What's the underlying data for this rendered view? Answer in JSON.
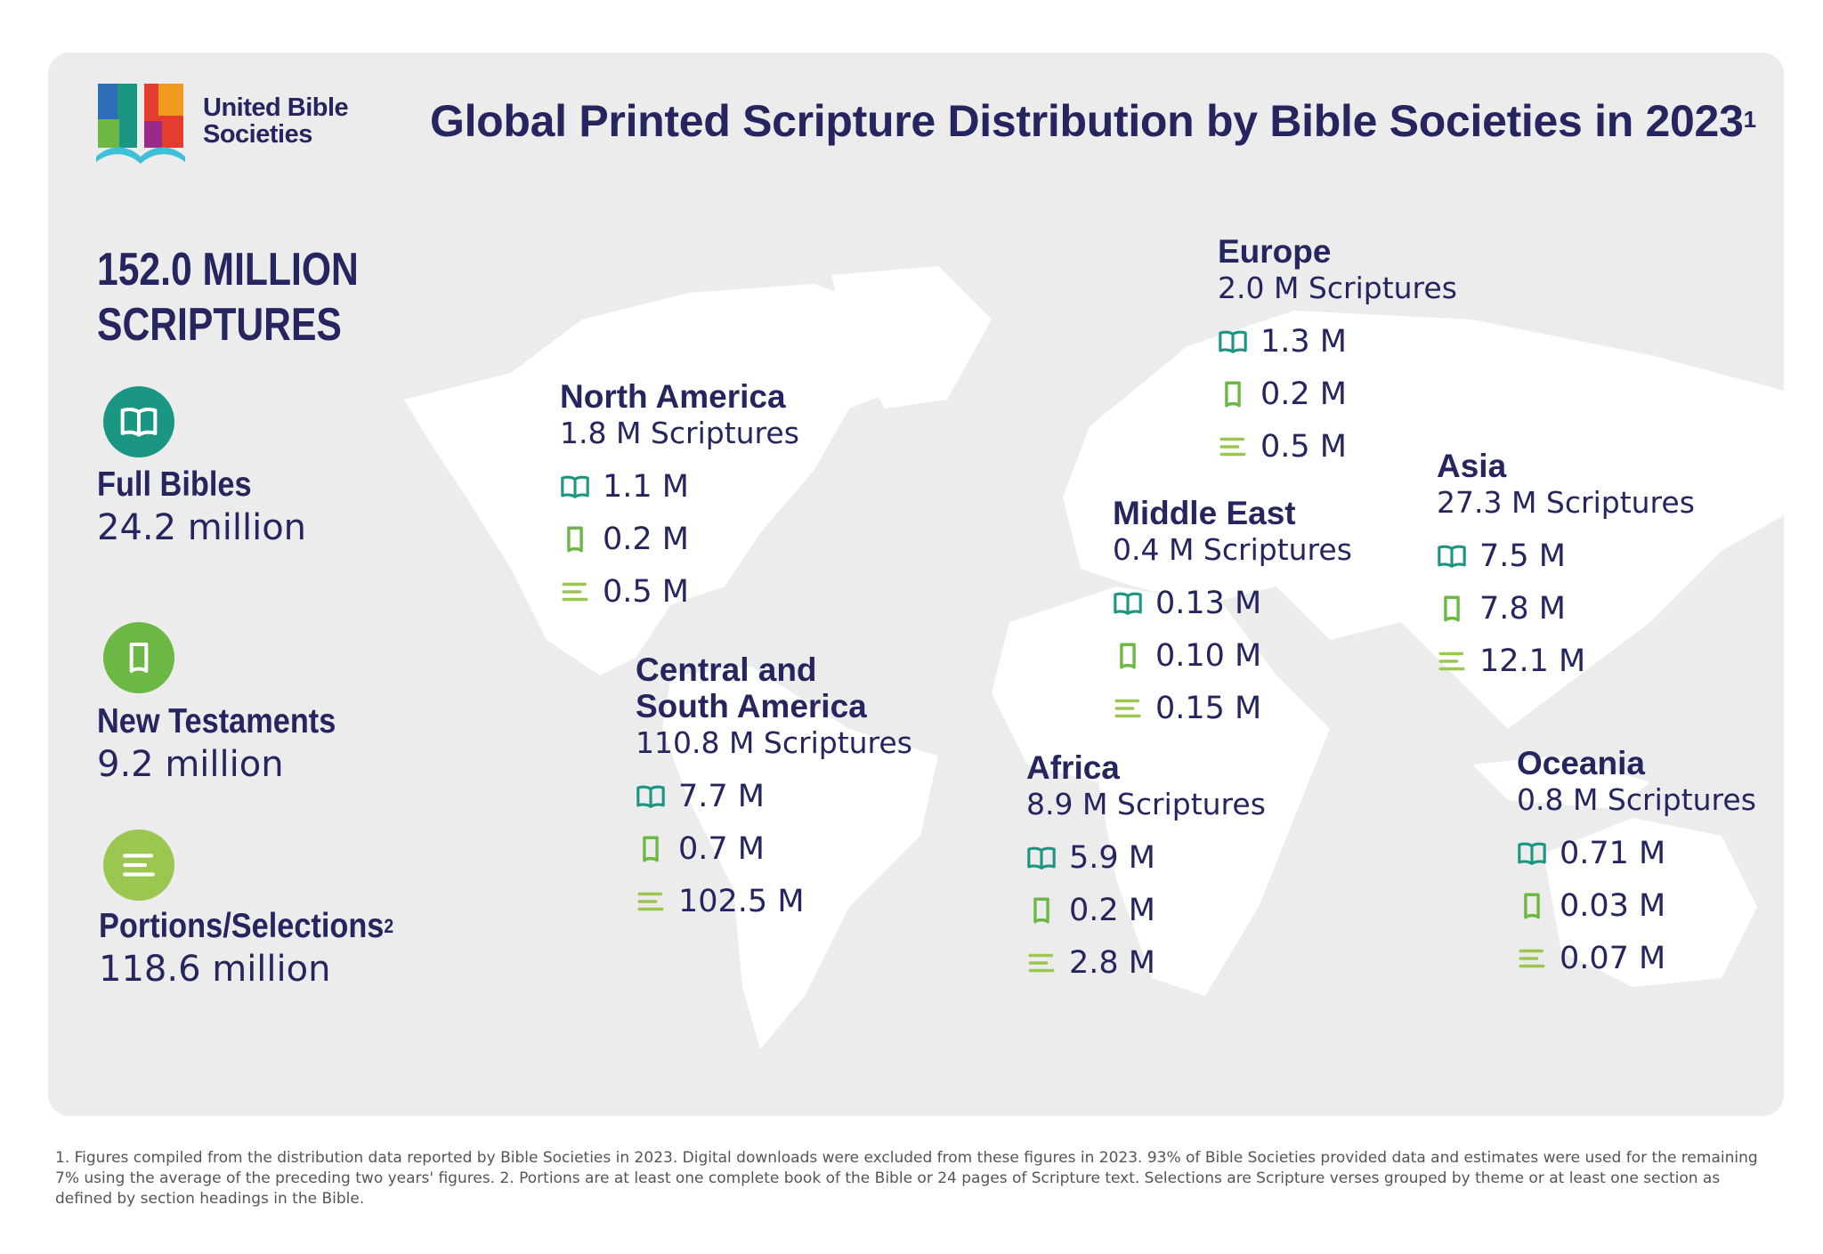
{
  "logo": {
    "name": "United Bible Societies",
    "line1": "United Bible",
    "line2": "Societies"
  },
  "header": {
    "title": "Global Printed Scripture Distribution by Bible Societies in 2023",
    "title_footnote": "1"
  },
  "colors": {
    "navy": "#25255f",
    "full_bibles": "#1a9682",
    "new_testaments": "#6cb844",
    "portions": "#9bc650",
    "panel": "#ececec"
  },
  "summary": {
    "total_line1": "152.0 MILLION",
    "total_line2": "SCRIPTURES",
    "items": [
      {
        "icon": "open-book-icon",
        "label": "Full Bibles",
        "value": "24.2 million",
        "footnote": ""
      },
      {
        "icon": "bookmark-book-icon",
        "label": "New Testaments",
        "value": "9.2 million",
        "footnote": ""
      },
      {
        "icon": "text-lines-icon",
        "label": "Portions/Selections",
        "value": "118.6 million",
        "footnote": "2"
      }
    ]
  },
  "regions": {
    "north_america": {
      "name": "North America",
      "total": "1.8 M Scriptures",
      "full_bibles": "1.1 M",
      "new_testaments": "0.2 M",
      "portions": "0.5 M"
    },
    "europe": {
      "name": "Europe",
      "total": "2.0 M Scriptures",
      "full_bibles": "1.3 M",
      "new_testaments": "0.2 M",
      "portions": "0.5 M"
    },
    "middle_east": {
      "name": "Middle East",
      "total": "0.4 M Scriptures",
      "full_bibles": "0.13 M",
      "new_testaments": "0.10 M",
      "portions": "0.15 M"
    },
    "asia": {
      "name": "Asia",
      "total": "27.3 M Scriptures",
      "full_bibles": "7.5 M",
      "new_testaments": "7.8 M",
      "portions": "12.1 M"
    },
    "central_south_america": {
      "name_line1": "Central and",
      "name_line2": "South America",
      "total": "110.8 M Scriptures",
      "full_bibles": "7.7 M",
      "new_testaments": "0.7 M",
      "portions": "102.5 M"
    },
    "africa": {
      "name": "Africa",
      "total": "8.9 M Scriptures",
      "full_bibles": "5.9 M",
      "new_testaments": "0.2 M",
      "portions": "2.8 M"
    },
    "oceania": {
      "name": "Oceania",
      "total": "0.8 M Scriptures",
      "full_bibles": "0.71 M",
      "new_testaments": "0.03 M",
      "portions": "0.07 M"
    }
  },
  "footnotes": "1. Figures compiled from the distribution data reported by Bible Societies in 2023. Digital downloads were excluded from these figures in 2023. 93% of Bible Societies provided data and estimates were used for the remaining 7% using the average of the preceding two years' figures.  2. Portions are at least one complete book of the Bible or 24 pages of Scripture text. Selections are Scripture verses grouped by theme or at least one section as defined by section headings in the Bible."
}
